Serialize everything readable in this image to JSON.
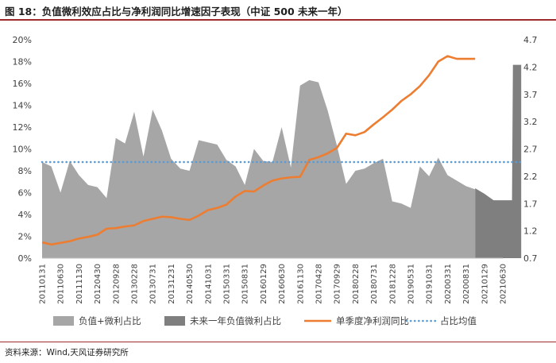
{
  "figure": {
    "title": "图 18：负值微利效应占比与净利润同比增速因子表现（中证 500 未来一年）",
    "source": "资料来源：Wind,天风证券研究所"
  },
  "chart_data": {
    "type": "bar",
    "title": "",
    "xlabel": "",
    "ylabel": "",
    "x_tick_labels": [
      "20110131",
      "20110630",
      "20111130",
      "20120430",
      "20120928",
      "20130228",
      "20130731",
      "20131231",
      "20140530",
      "20141031",
      "20150331",
      "20150831",
      "20160129",
      "20160630",
      "20161130",
      "20170428",
      "20170929",
      "20180228",
      "20180731",
      "20181228",
      "20190531",
      "20191031",
      "20200331",
      "20200831",
      "20210129",
      "20210630"
    ],
    "y_left": {
      "ylim": [
        0,
        20
      ],
      "unit": "%",
      "ticks": [
        "0%",
        "2%",
        "4%",
        "6%",
        "8%",
        "10%",
        "12%",
        "14%",
        "16%",
        "18%",
        "20%"
      ]
    },
    "y_right": {
      "ylim": [
        0.7,
        4.7
      ],
      "ticks": [
        "0.7",
        "1.2",
        "1.7",
        "2.2",
        "2.7",
        "3.2",
        "3.7",
        "4.2",
        "4.7"
      ]
    },
    "series": [
      {
        "name": "负值+微利占比",
        "type": "area",
        "axis": "left",
        "color": "#a6a6a6",
        "x": [
          0,
          0.5,
          1,
          1.5,
          2,
          2.5,
          3,
          3.5,
          4,
          4.5,
          5,
          5.5,
          6,
          6.5,
          7,
          7.5,
          8,
          8.5,
          9,
          9.5,
          10,
          10.5,
          11,
          11.5,
          12,
          12.5,
          13,
          13.5,
          14,
          14.5,
          15,
          15.5,
          16,
          16.5,
          17,
          17.5,
          18,
          18.5,
          19,
          19.5,
          20,
          20.5,
          21,
          21.5,
          22,
          22.5,
          23,
          23.5
        ],
        "values": [
          8.8,
          8.4,
          6.0,
          8.9,
          7.6,
          6.7,
          6.5,
          5.5,
          11.0,
          10.5,
          13.4,
          9.3,
          13.6,
          11.7,
          9.1,
          8.2,
          8.0,
          10.8,
          10.6,
          10.4,
          9.0,
          8.4,
          6.7,
          10.0,
          8.9,
          8.8,
          12.0,
          8.3,
          15.8,
          16.3,
          16.1,
          13.5,
          10.3,
          6.8,
          8.0,
          8.2,
          8.7,
          9.1,
          5.2,
          5.0,
          4.6,
          8.4,
          7.5,
          9.2,
          7.6,
          7.1,
          6.6,
          6.3
        ]
      },
      {
        "name": "未来一年负值微利占比",
        "type": "area",
        "axis": "left",
        "color": "#7f7f7f",
        "x": [
          23.5,
          24,
          24.5,
          25,
          25.5,
          25.55,
          26
        ],
        "values": [
          6.4,
          5.9,
          5.3,
          5.3,
          5.3,
          17.7,
          17.7
        ]
      },
      {
        "name": "单季度净利润同比",
        "type": "line",
        "axis": "right",
        "color": "#ed7d31",
        "x": [
          0,
          0.5,
          1,
          1.5,
          2,
          2.5,
          3,
          3.5,
          4,
          4.5,
          5,
          5.5,
          6,
          6.5,
          7,
          7.5,
          8,
          8.5,
          9,
          9.5,
          10,
          10.5,
          11,
          11.5,
          12,
          12.5,
          13,
          13.5,
          14,
          14.5,
          15,
          15.5,
          16,
          16.5,
          17,
          17.5,
          18,
          18.5,
          19,
          19.5,
          20,
          20.5,
          21,
          21.5,
          22,
          22.5,
          23,
          23.5
        ],
        "values": [
          0.99,
          0.95,
          0.98,
          1.01,
          1.06,
          1.09,
          1.13,
          1.24,
          1.25,
          1.28,
          1.3,
          1.38,
          1.42,
          1.46,
          1.45,
          1.42,
          1.4,
          1.48,
          1.58,
          1.62,
          1.68,
          1.83,
          1.93,
          1.92,
          2.03,
          2.12,
          2.16,
          2.18,
          2.19,
          2.5,
          2.55,
          2.62,
          2.72,
          2.98,
          2.95,
          3.01,
          3.15,
          3.28,
          3.42,
          3.58,
          3.7,
          3.85,
          4.05,
          4.3,
          4.4,
          4.35,
          4.35,
          4.35
        ]
      },
      {
        "name": "占比均值",
        "type": "line",
        "style": "dotted",
        "axis": "left",
        "color": "#5b9bd5",
        "x": [
          0,
          26
        ],
        "values": [
          8.8,
          8.8
        ]
      }
    ],
    "legend": {
      "position": "bottom",
      "entries": [
        "负值+微利占比",
        "未来一年负值微利占比",
        "单季度净利润同比",
        "占比均值"
      ]
    },
    "grid": false
  }
}
